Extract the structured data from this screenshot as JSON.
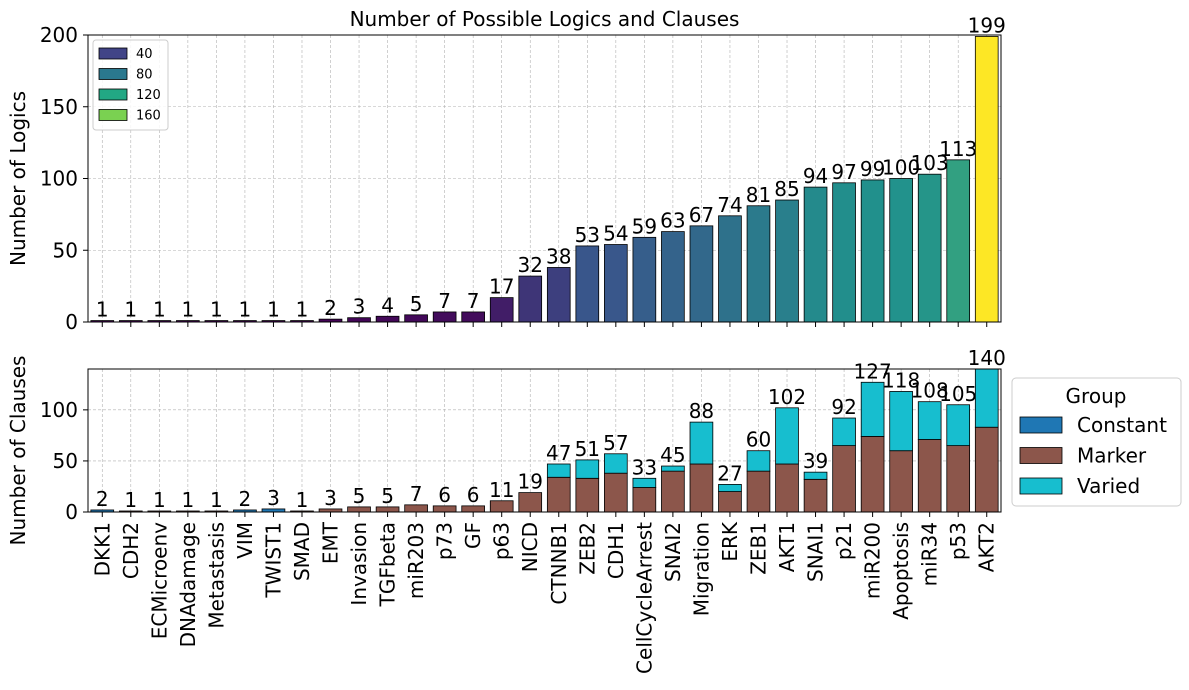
{
  "chart_data": [
    {
      "type": "bar",
      "title": "Number of Possible Logics and Clauses",
      "ylabel": "Number of Logics",
      "ylim": [
        0,
        200
      ],
      "yticks": [
        0,
        50,
        100,
        150,
        200
      ],
      "grid": true,
      "color_scale": "viridis",
      "categories": [
        "DKK1",
        "CDH2",
        "ECMicroenv",
        "DNAdamage",
        "Metastasis",
        "VIM",
        "TWIST1",
        "SMAD",
        "EMT",
        "Invasion",
        "TGFbeta",
        "miR203",
        "p73",
        "GF",
        "p63",
        "NICD",
        "CTNNB1",
        "ZEB2",
        "CDH1",
        "CellCycleArrest",
        "SNAI2",
        "Migration",
        "ERK",
        "ZEB1",
        "AKT1",
        "SNAI1",
        "p21",
        "miR200",
        "Apoptosis",
        "miR34",
        "p53",
        "AKT2"
      ],
      "values": [
        1,
        1,
        1,
        1,
        1,
        1,
        1,
        1,
        2,
        3,
        4,
        5,
        7,
        7,
        17,
        32,
        38,
        53,
        54,
        59,
        63,
        67,
        74,
        81,
        85,
        94,
        97,
        99,
        100,
        103,
        113,
        199
      ],
      "legend": {
        "placement": "top-left",
        "entries": [
          {
            "label": "40",
            "color": "#414487"
          },
          {
            "label": "80",
            "color": "#2a788e"
          },
          {
            "label": "120",
            "color": "#22a884"
          },
          {
            "label": "160",
            "color": "#7ad151"
          }
        ]
      }
    },
    {
      "type": "bar",
      "stacked": true,
      "ylabel": "Number of Clauses",
      "ylim": [
        0,
        140
      ],
      "yticks": [
        0,
        50,
        100
      ],
      "grid": true,
      "categories": [
        "DKK1",
        "CDH2",
        "ECMicroenv",
        "DNAdamage",
        "Metastasis",
        "VIM",
        "TWIST1",
        "SMAD",
        "EMT",
        "Invasion",
        "TGFbeta",
        "miR203",
        "p73",
        "GF",
        "p63",
        "NICD",
        "CTNNB1",
        "ZEB2",
        "CDH1",
        "CellCycleArrest",
        "SNAI2",
        "Migration",
        "ERK",
        "ZEB1",
        "AKT1",
        "SNAI1",
        "p21",
        "miR200",
        "Apoptosis",
        "miR34",
        "p53",
        "AKT2"
      ],
      "totals": [
        2,
        1,
        1,
        1,
        1,
        2,
        3,
        1,
        3,
        5,
        5,
        7,
        6,
        6,
        11,
        19,
        47,
        51,
        57,
        33,
        45,
        88,
        27,
        60,
        102,
        39,
        92,
        127,
        118,
        108,
        105,
        140
      ],
      "series": [
        {
          "name": "Constant",
          "color": "#1f77b4",
          "values": [
            2,
            0,
            0,
            0,
            0,
            2,
            3,
            0,
            0,
            0,
            0,
            0,
            0,
            0,
            0,
            0,
            0,
            0,
            0,
            0,
            0,
            0,
            0,
            0,
            0,
            0,
            0,
            0,
            0,
            0,
            0,
            0
          ]
        },
        {
          "name": "Marker",
          "color": "#8c564b",
          "values": [
            0,
            1,
            1,
            1,
            1,
            0,
            0,
            1,
            3,
            5,
            5,
            7,
            6,
            6,
            11,
            19,
            34,
            33,
            38,
            24,
            40,
            47,
            20,
            40,
            47,
            32,
            65,
            74,
            60,
            71,
            65,
            83
          ]
        },
        {
          "name": "Varied",
          "color": "#17becf",
          "values": [
            0,
            0,
            0,
            0,
            0,
            0,
            0,
            0,
            0,
            0,
            0,
            0,
            0,
            0,
            0,
            0,
            13,
            18,
            19,
            9,
            5,
            41,
            7,
            20,
            55,
            7,
            27,
            53,
            58,
            37,
            40,
            57
          ]
        }
      ],
      "legend": {
        "title": "Group",
        "placement": "outside-right"
      }
    }
  ]
}
